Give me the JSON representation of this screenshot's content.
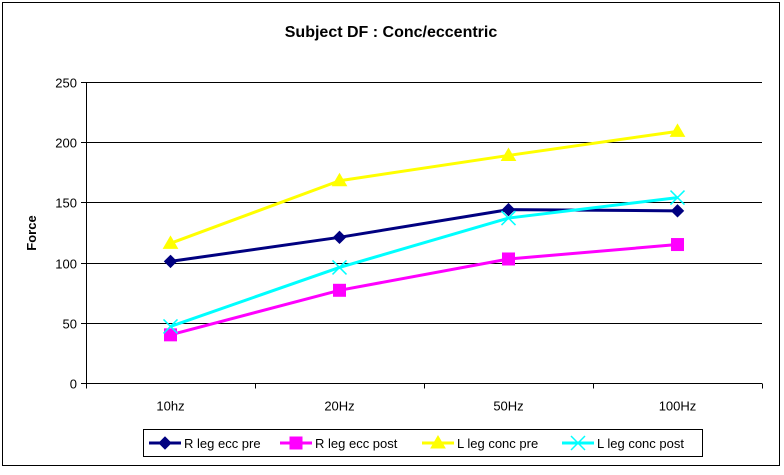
{
  "chart_data": {
    "type": "line",
    "title": "Subject DF : Conc/eccentric",
    "xlabel": "",
    "ylabel": "Force",
    "categories": [
      "10hz",
      "20Hz",
      "50Hz",
      "100Hz"
    ],
    "ylim": [
      0,
      250
    ],
    "yticks": [
      0,
      50,
      100,
      150,
      200,
      250
    ],
    "grid": true,
    "legend": "bottom",
    "series": [
      {
        "name": "R leg ecc pre",
        "values": [
          101,
          121,
          144,
          143
        ],
        "color": "#000080",
        "marker": "diamond"
      },
      {
        "name": "R leg ecc post",
        "values": [
          40,
          77,
          103,
          115
        ],
        "color": "#ff00ff",
        "marker": "square"
      },
      {
        "name": "L leg conc pre",
        "values": [
          116,
          168,
          189,
          209
        ],
        "color": "#ffff00",
        "marker": "triangle"
      },
      {
        "name": "L leg conc post",
        "values": [
          47,
          96,
          137,
          154
        ],
        "color": "#00ffff",
        "marker": "x"
      }
    ]
  }
}
